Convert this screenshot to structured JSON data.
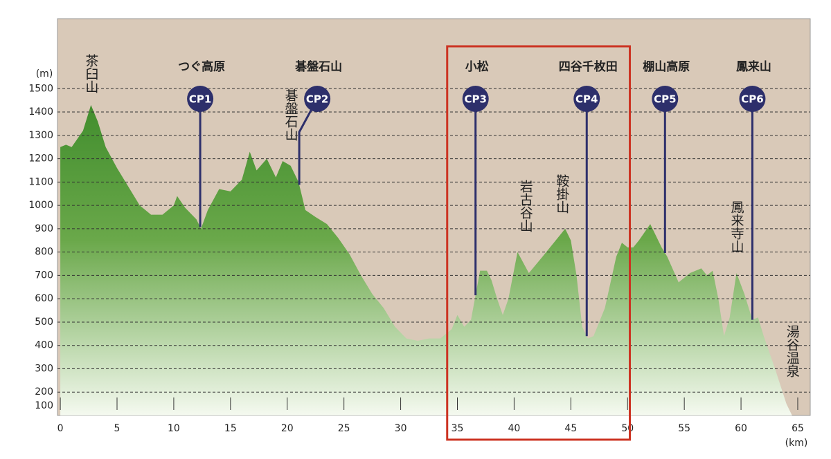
{
  "chart_data": {
    "type": "area",
    "y_label": "(m)",
    "x_label": "(km)",
    "background": "#d9c9b8",
    "xlim": [
      -0.25,
      66.1
    ],
    "ylim": [
      100,
      1800
    ],
    "xticks": [
      0,
      5,
      10,
      15,
      20,
      25,
      30,
      35,
      40,
      45,
      50,
      55,
      60,
      65
    ],
    "yticks": [
      100,
      200,
      300,
      400,
      500,
      600,
      700,
      800,
      900,
      1000,
      1100,
      1200,
      1300,
      1400,
      1500
    ],
    "grid": true,
    "x": [
      0,
      0.5,
      1,
      2,
      2.7,
      3.3,
      4,
      5,
      6,
      7,
      8,
      9,
      10,
      10.3,
      11,
      12,
      12.4,
      13,
      14,
      15,
      16,
      16.7,
      17.3,
      18.2,
      19,
      19.6,
      20.3,
      21,
      21.6,
      22.5,
      23.5,
      24.5,
      25.5,
      26.5,
      27.5,
      28.5,
      29.5,
      30.5,
      31.5,
      32.5,
      33.5,
      34.5,
      35,
      35.6,
      36.2,
      37,
      37.6,
      38,
      38.5,
      39,
      39.5,
      40.3,
      41.3,
      42.5,
      43.5,
      44.5,
      45,
      45.5,
      46,
      46.5,
      47,
      48,
      49,
      49.5,
      50,
      50.5,
      51,
      52,
      52.5,
      53,
      53.5,
      54.5,
      55.5,
      56.5,
      57,
      57.5,
      58,
      58.5,
      59,
      59.6,
      60.3,
      61,
      61.5,
      62,
      63,
      64,
      64.5
    ],
    "series": [
      {
        "color": "#3f8c2c",
        "values": [
          1250,
          1260,
          1250,
          1320,
          1430,
          1360,
          1250,
          1160,
          1080,
          1000,
          960,
          960,
          1000,
          1040,
          990,
          940,
          900,
          980,
          1070,
          1060,
          1110,
          1230,
          1150,
          1200,
          1120,
          1190,
          1170,
          1100,
          980,
          950,
          920,
          860,
          790,
          700,
          620,
          560,
          480,
          430,
          420,
          430,
          430,
          470,
          530,
          480,
          510,
          720,
          720,
          680,
          600,
          530,
          600,
          800,
          710,
          780,
          840,
          900,
          850,
          700,
          480,
          430,
          440,
          560,
          780,
          840,
          820,
          820,
          850,
          920,
          870,
          820,
          780,
          670,
          710,
          730,
          700,
          720,
          600,
          440,
          520,
          710,
          620,
          510,
          520,
          440,
          300,
          150,
          100
        ]
      }
    ],
    "checkpoints": [
      {
        "cp": "CP1",
        "name": "つぐ高原",
        "x": 12.33
      },
      {
        "cp": "CP2",
        "name": "碁盤石山",
        "x": 21.06
      },
      {
        "cp": "CP3",
        "name": "小松",
        "x": 36.6
      },
      {
        "cp": "CP4",
        "name": "四谷千枚田",
        "x": 46.4
      },
      {
        "cp": "CP5",
        "name": "棚山高原",
        "x": 53.3
      },
      {
        "cp": "CP6",
        "name": "鳳来山",
        "x": 61.0
      }
    ],
    "peaks": [
      {
        "label": "茶臼山",
        "x": 2.7
      },
      {
        "label": "碁盤石山",
        "x": 20.3
      },
      {
        "label": "岩古谷山",
        "x": 41.0
      },
      {
        "label": "鞍掛山",
        "x": 44.2
      },
      {
        "label": "鳳来寺山",
        "x": 59.6
      },
      {
        "label": "湯谷温泉",
        "x": 64.5
      }
    ],
    "highlight": {
      "xlim": [
        34.1,
        50.2
      ],
      "color": "#cc3322"
    }
  }
}
